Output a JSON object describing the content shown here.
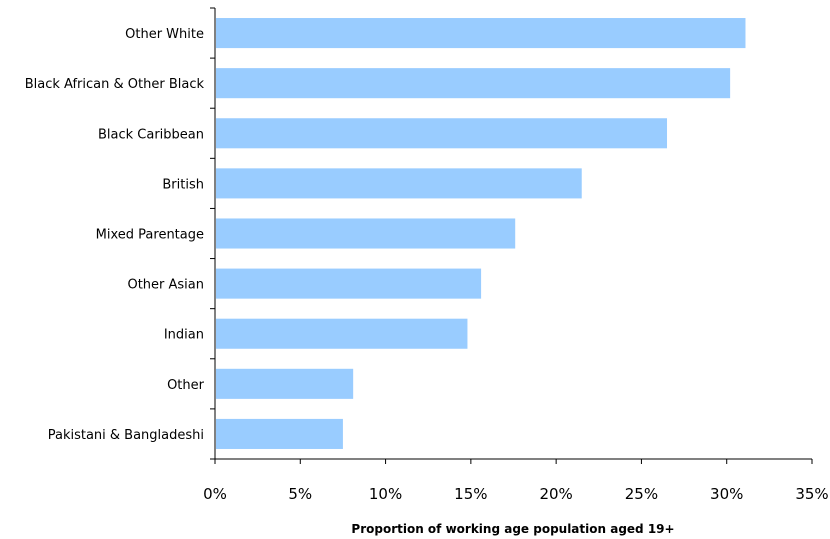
{
  "chart_data": {
    "type": "bar",
    "orientation": "horizontal",
    "categories": [
      "Other White",
      "Black African & Other Black",
      "Black Caribbean",
      "British",
      "Mixed Parentage",
      "Other Asian",
      "Indian",
      "Other",
      "Pakistani & Bangladeshi"
    ],
    "values": [
      31.1,
      30.2,
      26.5,
      21.5,
      17.6,
      15.6,
      14.8,
      8.1,
      7.5
    ],
    "value_unit": "%",
    "title": "",
    "xlabel": "Proportion of working age population aged 19+",
    "ylabel": "",
    "xlim": [
      0,
      35
    ],
    "x_ticks": [
      0,
      5,
      10,
      15,
      20,
      25,
      30,
      35
    ],
    "x_tick_labels": [
      "0%",
      "5%",
      "10%",
      "15%",
      "20%",
      "25%",
      "30%",
      "35%"
    ],
    "grid": false,
    "legend": "none",
    "bar_color": "#99ccff"
  }
}
